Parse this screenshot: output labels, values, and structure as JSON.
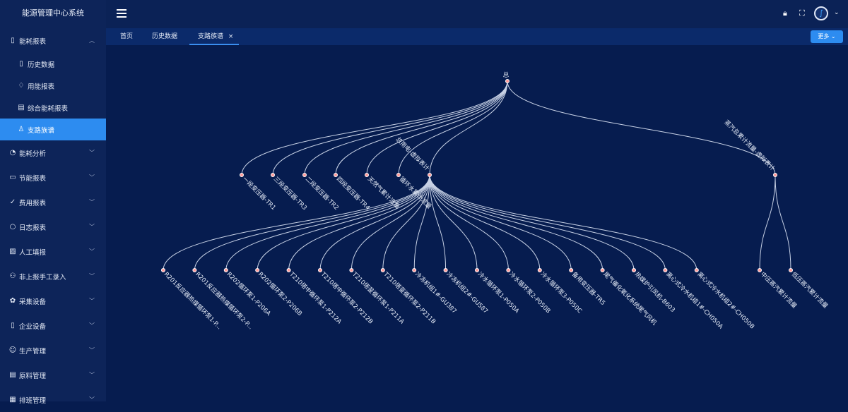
{
  "app": {
    "title": "能源管理中心系统"
  },
  "sidebar": {
    "items": [
      {
        "label": "能耗报表",
        "icon": "document-icon",
        "expanded": true,
        "children": [
          {
            "label": "历史数据",
            "icon": "document-icon"
          },
          {
            "label": "用能报表",
            "icon": "bell-icon"
          },
          {
            "label": "综合能耗报表",
            "icon": "edit-doc-icon"
          },
          {
            "label": "支路族谱",
            "icon": "hierarchy-icon",
            "active": true
          }
        ]
      },
      {
        "label": "能耗分析",
        "icon": "chart-icon"
      },
      {
        "label": "节能报表",
        "icon": "message-icon"
      },
      {
        "label": "费用报表",
        "icon": "check-circle-icon"
      },
      {
        "label": "日志报表",
        "icon": "chat-icon"
      },
      {
        "label": "人工填报",
        "icon": "image-icon"
      },
      {
        "label": "非上报手工录入",
        "icon": "users-icon"
      },
      {
        "label": "采集设备",
        "icon": "gear-icon"
      },
      {
        "label": "企业设备",
        "icon": "mobile-icon"
      },
      {
        "label": "生产管理",
        "icon": "smile-icon"
      },
      {
        "label": "原料管理",
        "icon": "edit-doc-icon"
      },
      {
        "label": "排班管理",
        "icon": "calendar-icon"
      }
    ]
  },
  "tabs": [
    {
      "label": "首页"
    },
    {
      "label": "历史数据"
    },
    {
      "label": "支路族谱",
      "active": true,
      "closable": "×"
    }
  ],
  "toolbar": {
    "more_label": "更多 ⌄"
  },
  "colors": {
    "accent": "#2d8cf0",
    "background": "#061c4f",
    "edge": "#c8d2e6",
    "node": "#ff9a9a"
  },
  "tree": {
    "name": "总",
    "children": [
      {
        "name": "一段变压器-TR1"
      },
      {
        "name": "三段变压器-TR3"
      },
      {
        "name": "二段变压器-TR2"
      },
      {
        "name": "四段变压器-TR4"
      },
      {
        "name": "天然气累计流量"
      },
      {
        "name": "循环水累计流量"
      },
      {
        "name": "总用电-虚拟表计",
        "children": [
          {
            "name": "R201反应器热媒循环泵1-P..."
          },
          {
            "name": "R201反应器热媒循环泵2-P..."
          },
          {
            "name": "R202循环泵1-P206A"
          },
          {
            "name": "R202循环泵2-P206B"
          },
          {
            "name": "T210塔中循环泵1-P212A"
          },
          {
            "name": "T210塔中循环泵2-P212B"
          },
          {
            "name": "T210塔釜循环泵1-P211A"
          },
          {
            "name": "T210塔釜循环泵2-P211B"
          },
          {
            "name": "冷冻机组1#-GU387"
          },
          {
            "name": "冷冻机组2#-GU587"
          },
          {
            "name": "冷水循环泵1-P050A"
          },
          {
            "name": "冷水循环泵2-P050B"
          },
          {
            "name": "冷水循环泵3-P050C"
          },
          {
            "name": "备用变压器-TR5"
          },
          {
            "name": "尾气催化氧化系统尾气风机"
          },
          {
            "name": "热媒炉引风机-B603"
          },
          {
            "name": "离心式冷水机组1#-CH050A"
          },
          {
            "name": "离心式冷水机组2#-CH050B"
          }
        ]
      },
      {
        "name": "蒸汽总累计流量-虚拟表计",
        "children": [
          {
            "name": "中压蒸汽累计流量"
          },
          {
            "name": "低压蒸汽累计流量"
          }
        ]
      }
    ]
  }
}
